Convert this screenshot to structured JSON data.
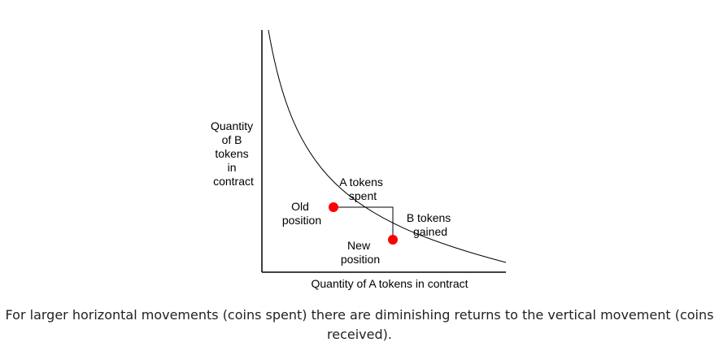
{
  "diagram": {
    "y_axis_label": [
      "Quantity",
      "of B",
      "tokens",
      "in",
      "contract"
    ],
    "x_axis_label": "Quantity of A tokens in contract",
    "old_position_label": [
      "Old",
      "position"
    ],
    "new_position_label": [
      "New",
      "position"
    ],
    "a_tokens_label": [
      "A tokens",
      "spent"
    ],
    "b_tokens_label": [
      "B tokens",
      "gained"
    ],
    "point_color": "#ff0000",
    "curve_color": "#000000"
  },
  "caption": "For larger horizontal movements (coins spent) there are diminishing returns to the vertical movement (coins received)."
}
